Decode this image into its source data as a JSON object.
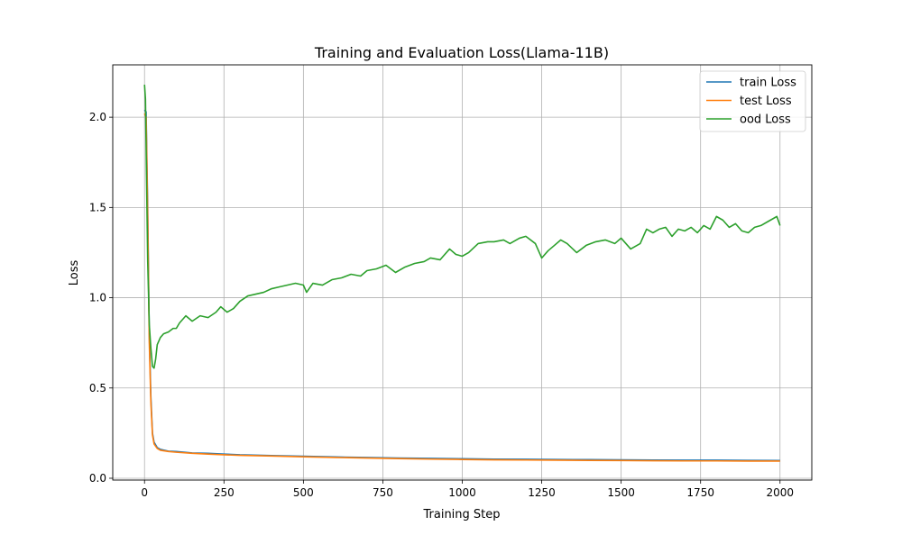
{
  "chart_data": {
    "type": "line",
    "title": "Training and Evaluation Loss(Llama-11B)",
    "xlabel": "Training Step",
    "ylabel": "Loss",
    "xlim": [
      -100,
      2100
    ],
    "ylim": [
      -0.01,
      2.29
    ],
    "xticks": [
      0,
      250,
      500,
      750,
      1000,
      1250,
      1500,
      1750,
      2000
    ],
    "yticks": [
      0.0,
      0.5,
      1.0,
      1.5,
      2.0
    ],
    "xtick_labels": [
      "0",
      "250",
      "500",
      "750",
      "1000",
      "1250",
      "1500",
      "1750",
      "2000"
    ],
    "ytick_labels": [
      "0.0",
      "0.5",
      "1.0",
      "1.5",
      "2.0"
    ],
    "grid": true,
    "legend_position": "top-right",
    "series": [
      {
        "name": "train Loss",
        "color": "#1f77b4",
        "points": [
          [
            0,
            2.04
          ],
          [
            5,
            2.03
          ],
          [
            10,
            1.5
          ],
          [
            15,
            0.8
          ],
          [
            20,
            0.45
          ],
          [
            25,
            0.25
          ],
          [
            30,
            0.2
          ],
          [
            40,
            0.17
          ],
          [
            50,
            0.16
          ],
          [
            75,
            0.15
          ],
          [
            100,
            0.148
          ],
          [
            150,
            0.14
          ],
          [
            200,
            0.138
          ],
          [
            250,
            0.134
          ],
          [
            300,
            0.13
          ],
          [
            400,
            0.126
          ],
          [
            500,
            0.122
          ],
          [
            600,
            0.118
          ],
          [
            700,
            0.115
          ],
          [
            800,
            0.112
          ],
          [
            900,
            0.11
          ],
          [
            1000,
            0.108
          ],
          [
            1100,
            0.106
          ],
          [
            1200,
            0.105
          ],
          [
            1300,
            0.104
          ],
          [
            1400,
            0.103
          ],
          [
            1500,
            0.102
          ],
          [
            1600,
            0.101
          ],
          [
            1700,
            0.1
          ],
          [
            1800,
            0.1
          ],
          [
            1900,
            0.099
          ],
          [
            2000,
            0.098
          ]
        ]
      },
      {
        "name": "test Loss",
        "color": "#ff7f0e",
        "points": [
          [
            0,
            2.02
          ],
          [
            5,
            2.0
          ],
          [
            10,
            1.45
          ],
          [
            15,
            0.75
          ],
          [
            20,
            0.42
          ],
          [
            25,
            0.24
          ],
          [
            30,
            0.19
          ],
          [
            40,
            0.165
          ],
          [
            50,
            0.155
          ],
          [
            75,
            0.148
          ],
          [
            100,
            0.144
          ],
          [
            150,
            0.138
          ],
          [
            200,
            0.134
          ],
          [
            250,
            0.13
          ],
          [
            300,
            0.127
          ],
          [
            400,
            0.123
          ],
          [
            500,
            0.119
          ],
          [
            600,
            0.115
          ],
          [
            700,
            0.112
          ],
          [
            800,
            0.109
          ],
          [
            900,
            0.106
          ],
          [
            1000,
            0.104
          ],
          [
            1100,
            0.102
          ],
          [
            1200,
            0.101
          ],
          [
            1300,
            0.1
          ],
          [
            1400,
            0.099
          ],
          [
            1500,
            0.098
          ],
          [
            1600,
            0.097
          ],
          [
            1700,
            0.096
          ],
          [
            1800,
            0.096
          ],
          [
            1900,
            0.095
          ],
          [
            2000,
            0.095
          ]
        ]
      },
      {
        "name": "ood Loss",
        "color": "#2ca02c",
        "points": [
          [
            0,
            2.18
          ],
          [
            3,
            2.1
          ],
          [
            6,
            1.7
          ],
          [
            10,
            1.2
          ],
          [
            15,
            0.85
          ],
          [
            20,
            0.72
          ],
          [
            25,
            0.62
          ],
          [
            30,
            0.61
          ],
          [
            35,
            0.66
          ],
          [
            40,
            0.74
          ],
          [
            50,
            0.78
          ],
          [
            60,
            0.8
          ],
          [
            75,
            0.81
          ],
          [
            90,
            0.83
          ],
          [
            100,
            0.83
          ],
          [
            110,
            0.86
          ],
          [
            120,
            0.88
          ],
          [
            130,
            0.9
          ],
          [
            150,
            0.87
          ],
          [
            175,
            0.9
          ],
          [
            200,
            0.89
          ],
          [
            225,
            0.92
          ],
          [
            240,
            0.95
          ],
          [
            260,
            0.92
          ],
          [
            280,
            0.94
          ],
          [
            300,
            0.98
          ],
          [
            325,
            1.01
          ],
          [
            350,
            1.02
          ],
          [
            375,
            1.03
          ],
          [
            400,
            1.05
          ],
          [
            425,
            1.06
          ],
          [
            450,
            1.07
          ],
          [
            475,
            1.08
          ],
          [
            500,
            1.07
          ],
          [
            510,
            1.03
          ],
          [
            530,
            1.08
          ],
          [
            560,
            1.07
          ],
          [
            590,
            1.1
          ],
          [
            620,
            1.11
          ],
          [
            650,
            1.13
          ],
          [
            680,
            1.12
          ],
          [
            700,
            1.15
          ],
          [
            730,
            1.16
          ],
          [
            760,
            1.18
          ],
          [
            790,
            1.14
          ],
          [
            820,
            1.17
          ],
          [
            850,
            1.19
          ],
          [
            880,
            1.2
          ],
          [
            900,
            1.22
          ],
          [
            930,
            1.21
          ],
          [
            960,
            1.27
          ],
          [
            980,
            1.24
          ],
          [
            1000,
            1.23
          ],
          [
            1020,
            1.25
          ],
          [
            1050,
            1.3
          ],
          [
            1080,
            1.31
          ],
          [
            1100,
            1.31
          ],
          [
            1130,
            1.32
          ],
          [
            1150,
            1.3
          ],
          [
            1180,
            1.33
          ],
          [
            1200,
            1.34
          ],
          [
            1230,
            1.3
          ],
          [
            1250,
            1.22
          ],
          [
            1270,
            1.26
          ],
          [
            1290,
            1.29
          ],
          [
            1310,
            1.32
          ],
          [
            1330,
            1.3
          ],
          [
            1360,
            1.25
          ],
          [
            1390,
            1.29
          ],
          [
            1420,
            1.31
          ],
          [
            1450,
            1.32
          ],
          [
            1480,
            1.3
          ],
          [
            1500,
            1.33
          ],
          [
            1530,
            1.27
          ],
          [
            1560,
            1.3
          ],
          [
            1580,
            1.38
          ],
          [
            1600,
            1.36
          ],
          [
            1620,
            1.38
          ],
          [
            1640,
            1.39
          ],
          [
            1660,
            1.34
          ],
          [
            1680,
            1.38
          ],
          [
            1700,
            1.37
          ],
          [
            1720,
            1.39
          ],
          [
            1740,
            1.36
          ],
          [
            1760,
            1.4
          ],
          [
            1780,
            1.38
          ],
          [
            1800,
            1.45
          ],
          [
            1820,
            1.43
          ],
          [
            1840,
            1.39
          ],
          [
            1860,
            1.41
          ],
          [
            1880,
            1.37
          ],
          [
            1900,
            1.36
          ],
          [
            1920,
            1.39
          ],
          [
            1940,
            1.4
          ],
          [
            1960,
            1.42
          ],
          [
            1980,
            1.44
          ],
          [
            1990,
            1.45
          ],
          [
            2000,
            1.4
          ]
        ]
      }
    ]
  }
}
